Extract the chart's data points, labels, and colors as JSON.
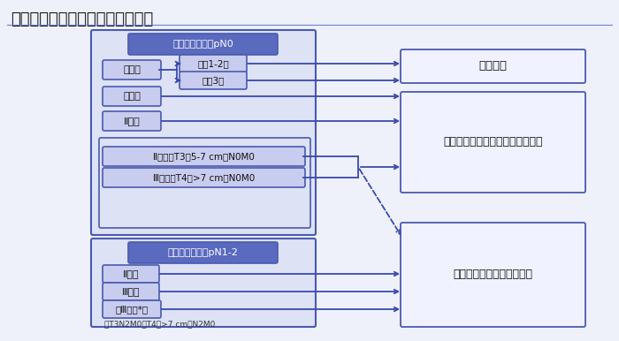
{
  "title": "非小細胞肺癌の術後補助化学療法",
  "title_fontsize": 13,
  "bg_color": "#eef1fa",
  "box_fill_light": "#c8ccee",
  "box_fill_header": "#5a6abf",
  "box_fill_outer": "#dde2f5",
  "box_fill_output": "#f0f2ff",
  "box_edge": "#4a5aaf",
  "arrow_color": "#3a4aaa",
  "text_white": "#ffffff",
  "text_dark": "#111111",
  "pN0_label": "術後病理病期：pN0",
  "pN12_label": "術後病理病期：pN1-2",
  "ia_label": "ＩＡ期",
  "ib_label": "ＩＢ期",
  "iia_label": "ⅡＡ期",
  "iib_t3_label": "ⅡＢ期：T3（5-7 cm）N0M0",
  "iiia_t4_label": "ⅢＡ期：T4（>7 cm）N0M0",
  "ia12_label": "ＩＡ1-2期",
  "ia3_label": "ＩＡ3期",
  "iib2_label": "ⅡＢ期",
  "iiia2_label": "ⅢＡ期",
  "iiib2_label": "（ⅢＢ期*）",
  "footnote": "＊T3N2M0，T4（>7 cm）N2M0",
  "output1": "経過観察",
  "output2": "テガフール・ウラシル配合剤療法",
  "output3": "シスプラチン併用化学療法"
}
